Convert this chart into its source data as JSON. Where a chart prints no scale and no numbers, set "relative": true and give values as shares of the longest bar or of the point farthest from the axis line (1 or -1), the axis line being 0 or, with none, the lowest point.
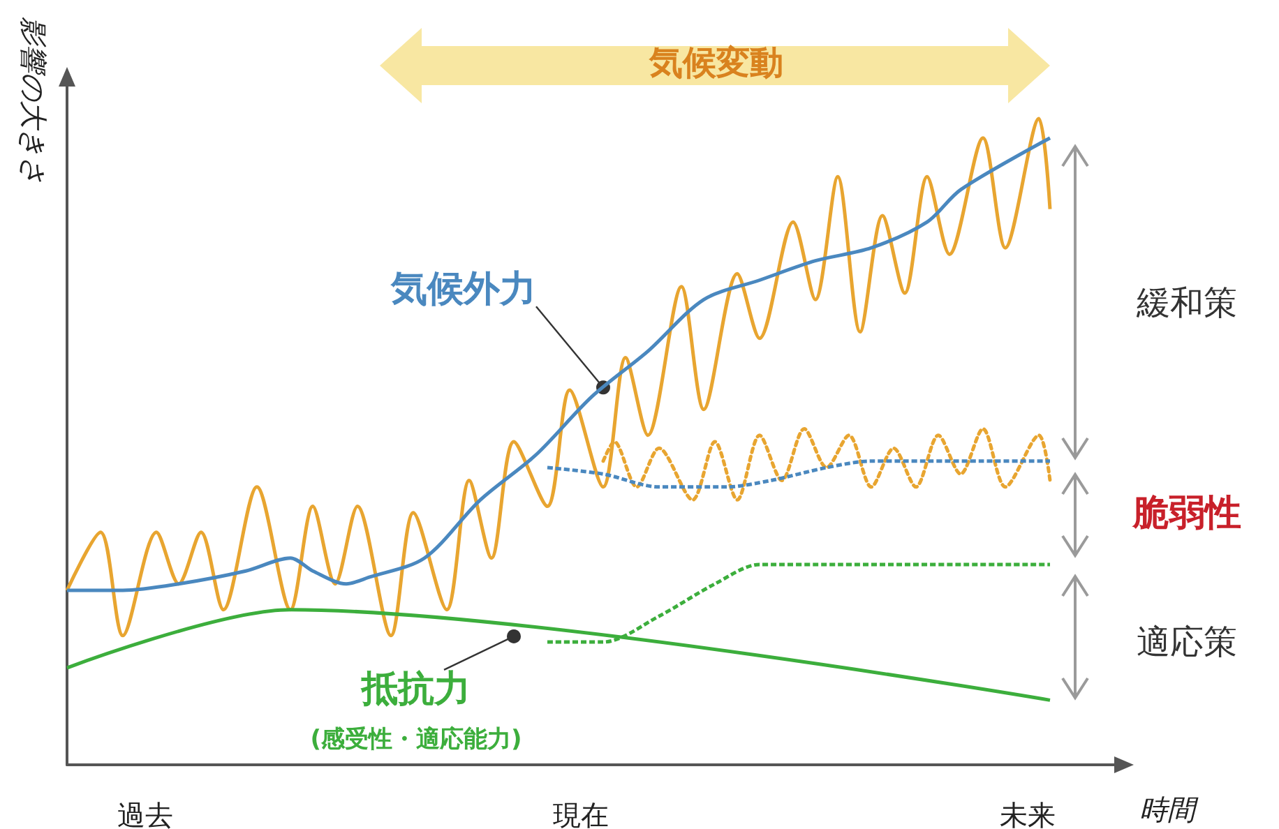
{
  "chart_data": {
    "type": "line",
    "relative": true,
    "marker": "none",
    "xlabel": "時間",
    "ylabel": "影響の大きさ",
    "categories": [
      null,
      null,
      null,
      null,
      null,
      null,
      null,
      "過去",
      null,
      null,
      null,
      null,
      null,
      null,
      null,
      null,
      null,
      null,
      null,
      null,
      null,
      null,
      null,
      null,
      null,
      null,
      null,
      null,
      null,
      null,
      null,
      null,
      null,
      null,
      null,
      null,
      null,
      null,
      null,
      null,
      null,
      null,
      null,
      null,
      null,
      null,
      "現在",
      null,
      null,
      null,
      null,
      null,
      null,
      null,
      null,
      null,
      null,
      null,
      null,
      null,
      null,
      null,
      null,
      null,
      null,
      null,
      null,
      null,
      null,
      null,
      null,
      null,
      null,
      null,
      null,
      null,
      null,
      null,
      null,
      null,
      null,
      null,
      null,
      null,
      null,
      null,
      "未来",
      null,
      null,
      null,
      null,
      null,
      null,
      null,
      null
    ],
    "annotations": [
      "気候外力",
      "抵抗力",
      "(感受性・適応能力)",
      "気候変動",
      "緩和策",
      "脆弱性",
      "適応策"
    ],
    "series": [
      {
        "color": "#e8a530",
        "line_style": "solid",
        "values": [
          0.27,
          null,
          null,
          0.36,
          null,
          0.2,
          null,
          null,
          0.36,
          null,
          0.28,
          null,
          0.36,
          null,
          0.24,
          null,
          null,
          0.43,
          null,
          null,
          0.24,
          null,
          0.4,
          null,
          0.28,
          null,
          0.4,
          null,
          null,
          0.2,
          null,
          0.39,
          null,
          null,
          0.24,
          null,
          0.44,
          null,
          0.32,
          null,
          0.5,
          null,
          null,
          0.4,
          null,
          0.58,
          null,
          null,
          0.43,
          null,
          0.63,
          null,
          0.51,
          null,
          null,
          0.74,
          null,
          0.55,
          null,
          null,
          0.76,
          null,
          0.66,
          null,
          null,
          0.84,
          null,
          0.72,
          null,
          0.91,
          null,
          0.67,
          null,
          0.85,
          null,
          0.73,
          null,
          0.91,
          null,
          0.79,
          null,
          null,
          0.97,
          null,
          0.8,
          null,
          null,
          1.0,
          0.86,
          null,
          null,
          null,
          null,
          null,
          null
        ]
      },
      {
        "color": "#e8a530",
        "line_style": "dotted",
        "values": [
          null,
          null,
          null,
          null,
          null,
          null,
          null,
          null,
          null,
          null,
          null,
          null,
          null,
          null,
          null,
          null,
          null,
          null,
          null,
          null,
          null,
          null,
          null,
          null,
          null,
          null,
          null,
          null,
          null,
          null,
          null,
          null,
          null,
          null,
          null,
          null,
          null,
          null,
          null,
          null,
          null,
          null,
          null,
          null,
          null,
          null,
          null,
          null,
          0.47,
          0.5,
          null,
          0.43,
          null,
          0.49,
          null,
          null,
          0.41,
          null,
          0.5,
          null,
          0.41,
          null,
          0.51,
          null,
          0.44,
          null,
          0.52,
          null,
          0.46,
          null,
          0.51,
          null,
          0.43,
          null,
          0.49,
          null,
          0.43,
          null,
          0.51,
          null,
          0.45,
          null,
          0.52,
          null,
          0.43,
          null,
          null,
          0.51,
          0.44,
          null,
          null,
          null,
          null,
          null,
          null
        ]
      },
      {
        "color": "#4a88bf",
        "line_style": "solid",
        "values": [
          0.27,
          null,
          null,
          null,
          null,
          0.27,
          null,
          null,
          null,
          null,
          0.28,
          null,
          null,
          null,
          null,
          null,
          0.3,
          null,
          null,
          null,
          0.32,
          null,
          0.3,
          null,
          null,
          0.28,
          null,
          0.29,
          null,
          null,
          null,
          null,
          0.32,
          null,
          null,
          null,
          null,
          0.41,
          null,
          null,
          null,
          null,
          0.48,
          null,
          null,
          null,
          null,
          0.57,
          null,
          null,
          null,
          null,
          0.64,
          null,
          null,
          null,
          null,
          0.72,
          null,
          null,
          null,
          null,
          0.75,
          null,
          null,
          null,
          null,
          0.78,
          null,
          null,
          null,
          null,
          0.8,
          null,
          null,
          null,
          null,
          0.84,
          null,
          null,
          0.89,
          null,
          null,
          null,
          null,
          null,
          null,
          null,
          0.97,
          null,
          null,
          null,
          null,
          null,
          null
        ]
      },
      {
        "color": "#4a88bf",
        "line_style": "dashed",
        "values": [
          null,
          null,
          null,
          null,
          null,
          null,
          null,
          null,
          null,
          null,
          null,
          null,
          null,
          null,
          null,
          null,
          null,
          null,
          null,
          null,
          null,
          null,
          null,
          null,
          null,
          null,
          null,
          null,
          null,
          null,
          null,
          null,
          null,
          null,
          null,
          null,
          null,
          null,
          null,
          null,
          null,
          null,
          null,
          0.46,
          null,
          null,
          null,
          null,
          0.45,
          null,
          null,
          null,
          null,
          0.43,
          null,
          null,
          null,
          null,
          null,
          0.43,
          null,
          null,
          null,
          0.44,
          null,
          null,
          null,
          null,
          0.46,
          null,
          null,
          null,
          0.47,
          null,
          null,
          null,
          null,
          0.47,
          null,
          null,
          null,
          null,
          0.47,
          null,
          null,
          null,
          null,
          null,
          0.47,
          null,
          null,
          null,
          null,
          null,
          null
        ]
      },
      {
        "color": "#3cae3c",
        "line_style": "solid",
        "values": [
          0.15,
          null,
          null,
          null,
          null,
          null,
          null,
          null,
          null,
          null,
          null,
          null,
          null,
          null,
          null,
          null,
          null,
          null,
          null,
          null,
          0.24,
          null,
          null,
          null,
          null,
          null,
          null,
          null,
          null,
          null,
          null,
          null,
          null,
          null,
          null,
          null,
          null,
          null,
          null,
          null,
          null,
          null,
          null,
          null,
          null,
          null,
          null,
          null,
          null,
          null,
          null,
          null,
          null,
          null,
          null,
          null,
          null,
          null,
          null,
          null,
          null,
          null,
          null,
          null,
          null,
          null,
          null,
          null,
          null,
          null,
          null,
          null,
          null,
          null,
          null,
          null,
          null,
          null,
          null,
          null,
          null,
          null,
          null,
          null,
          null,
          null,
          null,
          null,
          0.1,
          null,
          null,
          null,
          null,
          null,
          null
        ]
      },
      {
        "color": "#3cae3c",
        "line_style": "dashed",
        "values": [
          null,
          null,
          null,
          null,
          null,
          null,
          null,
          null,
          null,
          null,
          null,
          null,
          null,
          null,
          null,
          null,
          null,
          null,
          null,
          null,
          null,
          null,
          null,
          null,
          null,
          null,
          null,
          null,
          null,
          null,
          null,
          null,
          null,
          null,
          null,
          null,
          null,
          null,
          null,
          null,
          null,
          null,
          null,
          0.19,
          null,
          null,
          null,
          null,
          0.19,
          null,
          null,
          null,
          null,
          0.23,
          null,
          null,
          null,
          null,
          0.28,
          null,
          null,
          null,
          0.31,
          null,
          null,
          null,
          null,
          null,
          null,
          0.31,
          null,
          null,
          null,
          null,
          null,
          null,
          null,
          null,
          null,
          null,
          null,
          null,
          null,
          null,
          null,
          null,
          null,
          null,
          0.31,
          null,
          null,
          null,
          null,
          null,
          null
        ]
      }
    ]
  }
}
